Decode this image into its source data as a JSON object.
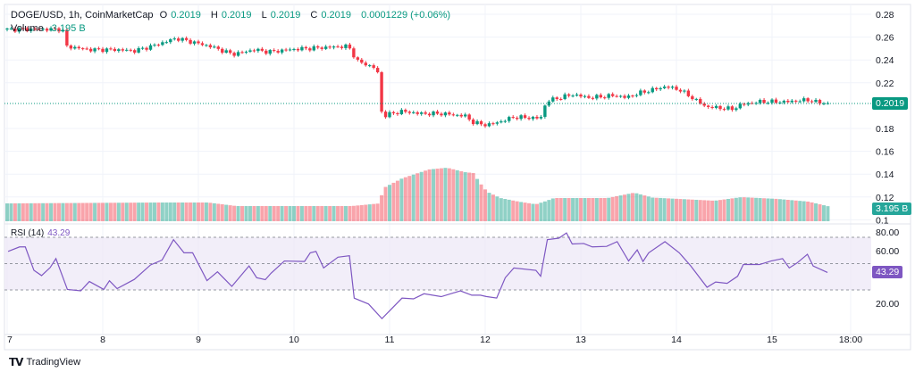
{
  "header": {
    "symbol": "DOGE/USD, 1h, CoinMarketCap",
    "open_label": "O",
    "open": "0.2019",
    "high_label": "H",
    "high": "0.2019",
    "low_label": "L",
    "low": "0.2019",
    "close_label": "C",
    "close": "0.2019",
    "change": "0.0001229 (+0.06%)"
  },
  "volume": {
    "label": "Volume",
    "value": "3.195 B"
  },
  "rsi": {
    "label": "RSI (14)",
    "value": "43.29"
  },
  "price_tag": "0.2019",
  "volume_tag": "3.195 B",
  "rsi_tag": "43.29",
  "footer": {
    "logo": "TV",
    "brand": "TradingView"
  },
  "colors": {
    "up": "#089981",
    "down": "#f23645",
    "rsi": "#7e57c2",
    "rsi_band": "#ede7f6"
  },
  "chart_data": [
    {
      "type": "candlestick",
      "title": "DOGE/USD, 1h, CoinMarketCap",
      "interval": "1h",
      "x_ticks": [
        "7",
        "8",
        "9",
        "10",
        "11",
        "12",
        "13",
        "14",
        "15",
        "18:00"
      ],
      "y_ticks": [
        "0.28",
        "0.26",
        "0.24",
        "0.22",
        "0.18",
        "0.16",
        "0.14",
        "0.12",
        "0.1"
      ],
      "ylim": [
        0.1,
        0.28
      ],
      "last_price": 0.2019,
      "close_path": [
        [
          7.02,
          0.2667
        ],
        [
          7.58,
          0.267
        ],
        [
          7.61,
          0.252
        ],
        [
          7.86,
          0.249
        ],
        [
          8.14,
          0.249
        ],
        [
          8.33,
          0.248
        ],
        [
          8.51,
          0.252
        ],
        [
          8.77,
          0.259
        ],
        [
          9.12,
          0.252
        ],
        [
          9.36,
          0.245
        ],
        [
          9.59,
          0.249
        ],
        [
          9.73,
          0.247
        ],
        [
          10.01,
          0.2495
        ],
        [
          10.34,
          0.251
        ],
        [
          10.57,
          0.252
        ],
        [
          10.66,
          0.239
        ],
        [
          10.85,
          0.233
        ],
        [
          10.9,
          0.224
        ],
        [
          10.92,
          0.189
        ],
        [
          10.97,
          0.192
        ],
        [
          11.13,
          0.195
        ],
        [
          11.32,
          0.193
        ],
        [
          11.55,
          0.193
        ],
        [
          11.79,
          0.191
        ],
        [
          11.88,
          0.185
        ],
        [
          12.02,
          0.183
        ],
        [
          12.16,
          0.186
        ],
        [
          12.3,
          0.19
        ],
        [
          12.58,
          0.189
        ],
        [
          12.64,
          0.204
        ],
        [
          12.91,
          0.2097
        ],
        [
          13.09,
          0.207
        ],
        [
          13.37,
          0.209
        ],
        [
          13.47,
          0.207
        ],
        [
          13.61,
          0.211
        ],
        [
          13.89,
          0.2167
        ],
        [
          14.03,
          0.214
        ],
        [
          14.17,
          0.2066
        ],
        [
          14.31,
          0.199
        ],
        [
          14.59,
          0.197
        ],
        [
          14.68,
          0.201
        ],
        [
          14.87,
          0.2034
        ],
        [
          15.15,
          0.2034
        ],
        [
          15.38,
          0.205
        ],
        [
          15.48,
          0.2027
        ],
        [
          15.62,
          0.2019
        ]
      ]
    },
    {
      "type": "bar",
      "title": "Volume",
      "unit": "B",
      "last_value": 3.195,
      "volume_path": [
        [
          7.0,
          4.0
        ],
        [
          8.6,
          4.2
        ],
        [
          9.1,
          4.2
        ],
        [
          9.4,
          3.4
        ],
        [
          10.6,
          3.4
        ],
        [
          10.9,
          4.0
        ],
        [
          10.92,
          6.2
        ],
        [
          10.95,
          7.6
        ],
        [
          11.13,
          9.6
        ],
        [
          11.41,
          11.6
        ],
        [
          11.6,
          12.0
        ],
        [
          11.79,
          11.0
        ],
        [
          11.88,
          10.8
        ],
        [
          11.93,
          9.0
        ],
        [
          12.02,
          6.6
        ],
        [
          12.16,
          5.2
        ],
        [
          12.35,
          4.4
        ],
        [
          12.53,
          3.8
        ],
        [
          12.62,
          4.4
        ],
        [
          12.72,
          5.2
        ],
        [
          13.28,
          5.2
        ],
        [
          13.56,
          6.4
        ],
        [
          13.75,
          5.3
        ],
        [
          14.4,
          4.6
        ],
        [
          14.68,
          5.4
        ],
        [
          15.06,
          5.0
        ],
        [
          15.38,
          4.4
        ],
        [
          15.62,
          3.195
        ]
      ]
    },
    {
      "type": "line",
      "title": "RSI (14)",
      "ylim": [
        0,
        80
      ],
      "y_ticks": [
        "80.00",
        "60.00",
        "20.00"
      ],
      "bands": [
        30,
        50,
        70
      ],
      "last_value": 43.29,
      "rsi_path": [
        [
          7.01,
          59.3
        ],
        [
          7.13,
          62.7
        ],
        [
          7.19,
          62.7
        ],
        [
          7.28,
          44.9
        ],
        [
          7.36,
          40.9
        ],
        [
          7.45,
          47
        ],
        [
          7.51,
          53.8
        ],
        [
          7.63,
          30.4
        ],
        [
          7.77,
          29.3
        ],
        [
          7.86,
          36.4
        ],
        [
          8.01,
          30.4
        ],
        [
          8.07,
          37
        ],
        [
          8.15,
          31
        ],
        [
          8.33,
          38
        ],
        [
          8.5,
          49
        ],
        [
          8.62,
          52.7
        ],
        [
          8.74,
          68.2
        ],
        [
          8.85,
          58.2
        ],
        [
          8.94,
          58.2
        ],
        [
          9.09,
          37.1
        ],
        [
          9.2,
          43.8
        ],
        [
          9.35,
          32.7
        ],
        [
          9.53,
          48.2
        ],
        [
          9.61,
          39.3
        ],
        [
          9.7,
          37.8
        ],
        [
          9.76,
          42.7
        ],
        [
          9.9,
          52
        ],
        [
          10.11,
          51.6
        ],
        [
          10.17,
          58.2
        ],
        [
          10.23,
          59.3
        ],
        [
          10.31,
          46.7
        ],
        [
          10.46,
          54.9
        ],
        [
          10.58,
          56
        ],
        [
          10.63,
          23.8
        ],
        [
          10.78,
          19.3
        ],
        [
          10.92,
          8.2
        ],
        [
          11.01,
          14.9
        ],
        [
          11.13,
          23.8
        ],
        [
          11.25,
          23.2
        ],
        [
          11.36,
          27.1
        ],
        [
          11.54,
          24.9
        ],
        [
          11.74,
          29.3
        ],
        [
          11.86,
          26
        ],
        [
          11.95,
          26
        ],
        [
          12.01,
          25
        ],
        [
          12.12,
          23.8
        ],
        [
          12.21,
          39.3
        ],
        [
          12.3,
          46.7
        ],
        [
          12.53,
          44.9
        ],
        [
          12.58,
          40.4
        ],
        [
          12.65,
          68.2
        ],
        [
          12.77,
          69.3
        ],
        [
          12.85,
          73.3
        ],
        [
          12.91,
          64.9
        ],
        [
          13.03,
          65.3
        ],
        [
          13.12,
          62.7
        ],
        [
          13.27,
          63.1
        ],
        [
          13.38,
          66.7
        ],
        [
          13.5,
          52
        ],
        [
          13.59,
          60.4
        ],
        [
          13.65,
          51.6
        ],
        [
          13.71,
          58.2
        ],
        [
          13.88,
          66.7
        ],
        [
          14.03,
          58.2
        ],
        [
          14.15,
          48.2
        ],
        [
          14.32,
          32
        ],
        [
          14.41,
          36
        ],
        [
          14.53,
          35
        ],
        [
          14.64,
          40.4
        ],
        [
          14.7,
          49.3
        ],
        [
          14.81,
          49.3
        ],
        [
          14.87,
          49.3
        ],
        [
          14.99,
          52
        ],
        [
          15.11,
          53.8
        ],
        [
          15.18,
          46.7
        ],
        [
          15.26,
          50.4
        ],
        [
          15.37,
          57.1
        ],
        [
          15.43,
          48.2
        ],
        [
          15.58,
          43.29
        ]
      ]
    }
  ]
}
